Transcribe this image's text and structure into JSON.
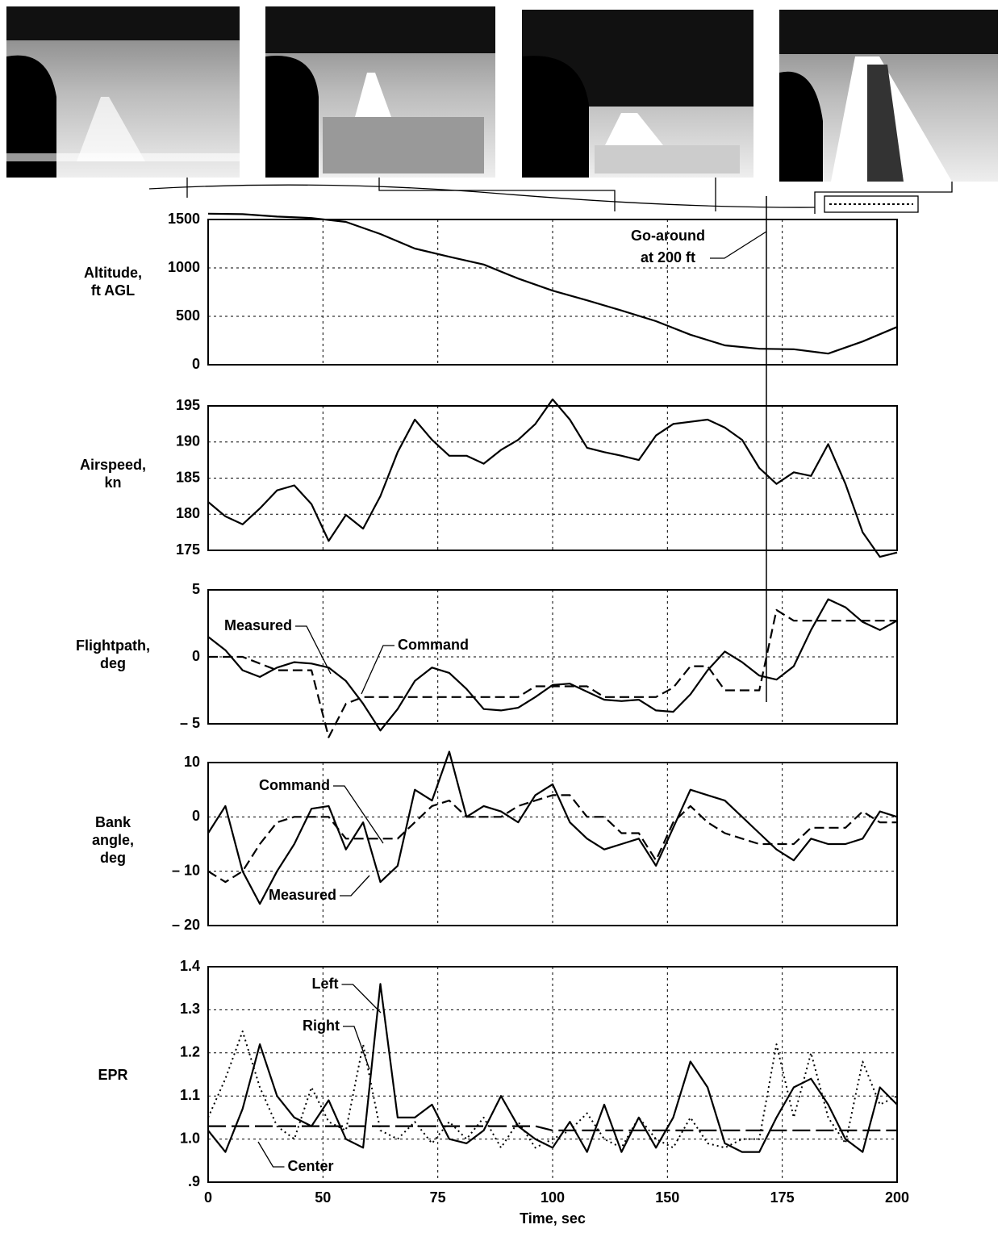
{
  "chart_data": [
    {
      "type": "line",
      "ylabel": [
        "Altitude,",
        "ft AGL"
      ],
      "x": [
        0,
        10,
        20,
        30,
        40,
        50,
        60,
        70,
        80,
        90,
        100,
        110,
        120,
        130,
        140,
        150,
        160,
        170,
        180,
        190,
        200
      ],
      "xlim": [
        0,
        200
      ],
      "ylim": [
        0,
        1500
      ],
      "yticks": [
        0,
        500,
        1000,
        1500
      ],
      "grid": true,
      "annotations": [
        "Go-around",
        "at 200 ft"
      ],
      "series": [
        {
          "color": "#000000",
          "style": "solid",
          "values": [
            1560,
            1555,
            1530,
            1515,
            1475,
            1350,
            1200,
            1115,
            1035,
            890,
            765,
            665,
            560,
            450,
            310,
            200,
            165,
            160,
            115,
            240,
            390
          ]
        }
      ]
    },
    {
      "type": "line",
      "ylabel": [
        "Airspeed,",
        "kn"
      ],
      "x": [
        0,
        5,
        10,
        15,
        20,
        25,
        30,
        35,
        40,
        45,
        50,
        55,
        60,
        65,
        70,
        75,
        80,
        85,
        90,
        95,
        100,
        105,
        110,
        115,
        120,
        125,
        130,
        135,
        140,
        145,
        150,
        155,
        160,
        165,
        170,
        175,
        180,
        185,
        190,
        195,
        200
      ],
      "xlim": [
        0,
        200
      ],
      "ylim": [
        175,
        195
      ],
      "yticks": [
        175,
        180,
        185,
        190,
        195
      ],
      "grid": true,
      "series": [
        {
          "color": "#000000",
          "style": "solid",
          "values": [
            181.7,
            179.7,
            178.6,
            180.8,
            183.3,
            184,
            181.4,
            176.3,
            179.9,
            178,
            182.5,
            188.6,
            193.1,
            190.3,
            188.1,
            188.1,
            187,
            188.9,
            190.3,
            192.5,
            195.9,
            193.1,
            189.2,
            188.6,
            188.1,
            187.5,
            190.9,
            192.5,
            192.8,
            193.1,
            192,
            190.3,
            186.4,
            184.2,
            185.8,
            185.3,
            189.7,
            184.2,
            177.5,
            174.1,
            174.7
          ]
        }
      ]
    },
    {
      "type": "line",
      "ylabel": [
        "Flightpath,",
        "deg"
      ],
      "x": [
        0,
        5,
        10,
        15,
        20,
        25,
        30,
        35,
        40,
        45,
        50,
        55,
        60,
        65,
        70,
        75,
        80,
        85,
        90,
        95,
        100,
        105,
        110,
        115,
        120,
        125,
        130,
        135,
        140,
        145,
        150,
        155,
        160,
        165,
        170,
        175,
        180,
        185,
        190,
        195,
        200
      ],
      "xlim": [
        0,
        200
      ],
      "ylim": [
        -5,
        5
      ],
      "yticks": [
        {
          "value": -5,
          "label": "– 5"
        },
        0,
        5
      ],
      "grid": true,
      "series": [
        {
          "name": "Measured",
          "color": "#000000",
          "style": "solid",
          "values": [
            1.5,
            0.5,
            -1.0,
            -1.5,
            -0.8,
            -0.4,
            -0.5,
            -0.8,
            -1.8,
            -3.5,
            -5.5,
            -3.9,
            -1.8,
            -0.8,
            -1.2,
            -2.4,
            -3.9,
            -4.0,
            -3.8,
            -3.0,
            -2.1,
            -2.0,
            -2.6,
            -3.2,
            -3.3,
            -3.2,
            -4.0,
            -4.1,
            -2.8,
            -1.0,
            0.4,
            -0.4,
            -1.4,
            -1.7,
            -0.7,
            2.0,
            4.3,
            3.7,
            2.6,
            2.0,
            2.7
          ]
        },
        {
          "name": "Command",
          "color": "#000000",
          "style": "dashed",
          "values": [
            0,
            0,
            0,
            -0.5,
            -1,
            -1,
            -1,
            -6,
            -3.5,
            -3,
            -3,
            -3,
            -3,
            -3,
            -3,
            -3,
            -3,
            -3,
            -3,
            -2.2,
            -2.2,
            -2.2,
            -2.2,
            -3,
            -3,
            -3,
            -3,
            -2.3,
            -0.7,
            -0.7,
            -2.5,
            -2.5,
            -2.5,
            3.5,
            2.7,
            2.7,
            2.7,
            2.7,
            2.7,
            2.7,
            2.7
          ]
        }
      ]
    },
    {
      "type": "line",
      "ylabel": [
        "Bank",
        "angle,",
        "deg"
      ],
      "x": [
        0,
        5,
        10,
        15,
        20,
        25,
        30,
        35,
        40,
        45,
        50,
        55,
        60,
        65,
        70,
        75,
        80,
        85,
        90,
        95,
        100,
        105,
        110,
        115,
        120,
        125,
        130,
        135,
        140,
        145,
        150,
        155,
        160,
        165,
        170,
        175,
        180,
        185,
        190,
        195,
        200
      ],
      "xlim": [
        0,
        200
      ],
      "ylim": [
        -20,
        10
      ],
      "yticks": [
        {
          "value": -20,
          "label": "– 20"
        },
        {
          "value": -10,
          "label": "– 10"
        },
        0,
        10
      ],
      "grid": true,
      "series": [
        {
          "name": "Measured",
          "color": "#000000",
          "style": "solid",
          "values": [
            -3,
            2,
            -10,
            -16,
            -10,
            -5,
            1.5,
            2,
            -6,
            -1,
            -12,
            -9,
            5,
            3,
            12,
            0,
            2,
            1,
            -1,
            4,
            6,
            -1,
            -4,
            -6,
            -5,
            -4,
            -9,
            -2,
            5,
            4,
            3,
            0,
            -3,
            -6,
            -8,
            -4,
            -5,
            -5,
            -4,
            1,
            0
          ]
        },
        {
          "name": "Command",
          "color": "#000000",
          "style": "dashed",
          "values": [
            -10,
            -12,
            -10,
            -5,
            -1,
            0,
            0,
            0,
            -4,
            -4,
            -4,
            -4,
            -1,
            2,
            3,
            0,
            0,
            0,
            2,
            3,
            4,
            4,
            0,
            0,
            -3,
            -3,
            -8,
            -1,
            2,
            -1,
            -3,
            -4,
            -5,
            -5,
            -5,
            -2,
            -2,
            -2,
            1,
            -1,
            -1
          ]
        }
      ]
    },
    {
      "type": "line",
      "ylabel": [
        "EPR"
      ],
      "xlabel": "Time, sec",
      "x": [
        0,
        5,
        10,
        15,
        20,
        25,
        30,
        35,
        40,
        45,
        50,
        55,
        60,
        65,
        70,
        75,
        80,
        85,
        90,
        95,
        100,
        105,
        110,
        115,
        120,
        125,
        130,
        135,
        140,
        145,
        150,
        155,
        160,
        165,
        170,
        175,
        180,
        185,
        190,
        195,
        200
      ],
      "xlim": [
        0,
        200
      ],
      "xticks": [
        0,
        {
          "value": 33.33,
          "label": "50"
        },
        {
          "value": 66.67,
          "label": "75"
        },
        100,
        {
          "value": 133.33,
          "label": "150"
        },
        {
          "value": 166.67,
          "label": "175"
        },
        200
      ],
      "ylim": [
        0.9,
        1.4
      ],
      "yticks": [
        {
          "value": 0.9,
          "label": ".9"
        },
        {
          "value": 1.0,
          "label": "1.0"
        },
        1.1,
        1.2,
        1.3,
        1.4
      ],
      "grid": true,
      "series": [
        {
          "name": "Left",
          "color": "#000000",
          "style": "solid",
          "values": [
            1.02,
            0.97,
            1.07,
            1.22,
            1.1,
            1.05,
            1.03,
            1.09,
            1.0,
            0.98,
            1.36,
            1.05,
            1.05,
            1.08,
            1.0,
            0.99,
            1.02,
            1.1,
            1.03,
            1.0,
            0.98,
            1.04,
            0.97,
            1.08,
            0.97,
            1.05,
            0.98,
            1.05,
            1.18,
            1.12,
            0.99,
            0.97,
            0.97,
            1.05,
            1.12,
            1.14,
            1.08,
            1.0,
            0.97,
            1.12,
            1.08
          ]
        },
        {
          "name": "Right",
          "color": "#000000",
          "style": "dotted",
          "values": [
            1.05,
            1.14,
            1.25,
            1.12,
            1.03,
            1.0,
            1.12,
            1.04,
            1.02,
            1.22,
            1.02,
            1.0,
            1.04,
            0.99,
            1.04,
            1.0,
            1.05,
            0.98,
            1.04,
            0.98,
            1.0,
            1.02,
            1.06,
            1.0,
            0.98,
            1.05,
            1.0,
            0.98,
            1.05,
            0.99,
            0.98,
            1.0,
            1.0,
            1.22,
            1.05,
            1.2,
            1.05,
            0.99,
            1.18,
            1.08,
            1.1
          ]
        },
        {
          "name": "Center",
          "color": "#000000",
          "style": "long-dash",
          "values": [
            1.03,
            1.03,
            1.03,
            1.03,
            1.03,
            1.03,
            1.03,
            1.03,
            1.03,
            1.03,
            1.03,
            1.03,
            1.03,
            1.03,
            1.03,
            1.03,
            1.03,
            1.03,
            1.03,
            1.03,
            1.02,
            1.02,
            1.02,
            1.02,
            1.02,
            1.02,
            1.02,
            1.02,
            1.02,
            1.02,
            1.02,
            1.02,
            1.02,
            1.02,
            1.02,
            1.02,
            1.02,
            1.02,
            1.02,
            1.02,
            1.02
          ]
        }
      ]
    }
  ]
}
